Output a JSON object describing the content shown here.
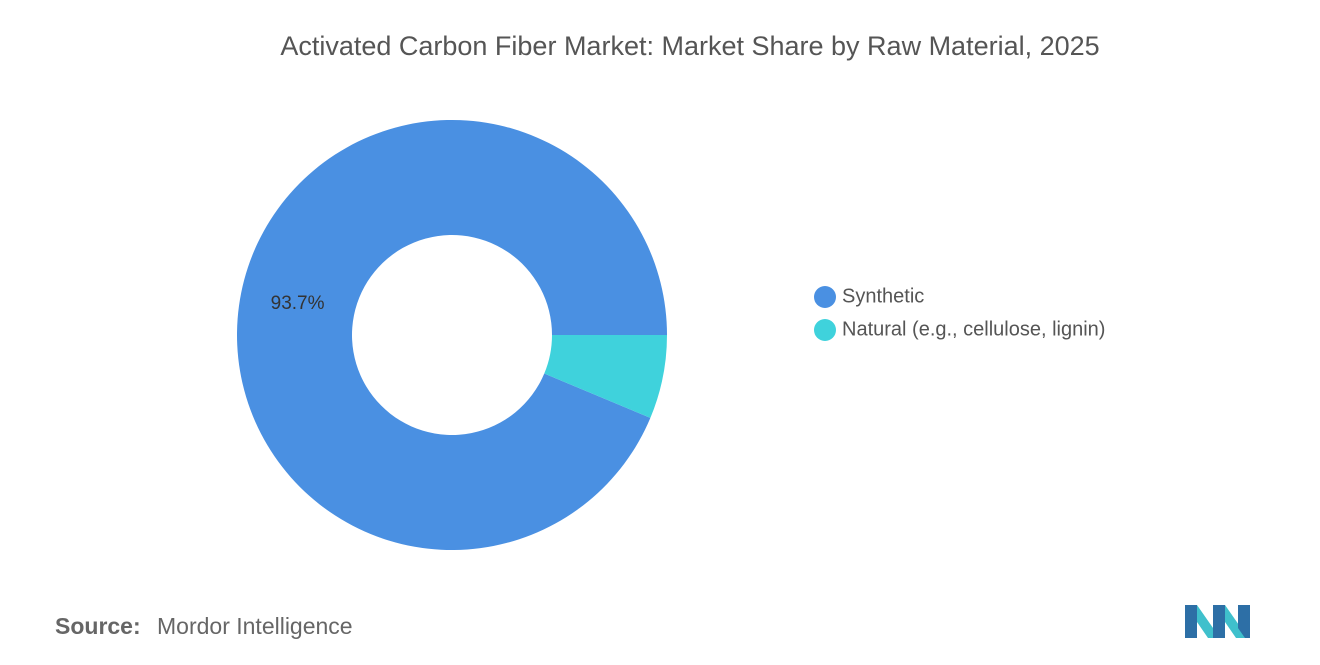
{
  "chart_data": {
    "type": "donut",
    "title": "Activated Carbon Fiber Market: Market Share by Raw Material, 2025",
    "categories": [
      "Synthetic",
      "Natural (e.g., cellulose, lignin)"
    ],
    "values": [
      93.7,
      6.3
    ],
    "value_labels": [
      "93.7%",
      null
    ],
    "colors": [
      "#4a90e2",
      "#3fd2dc"
    ],
    "legend": "right"
  },
  "source": {
    "label": "Source:",
    "text": "Mordor Intelligence"
  }
}
